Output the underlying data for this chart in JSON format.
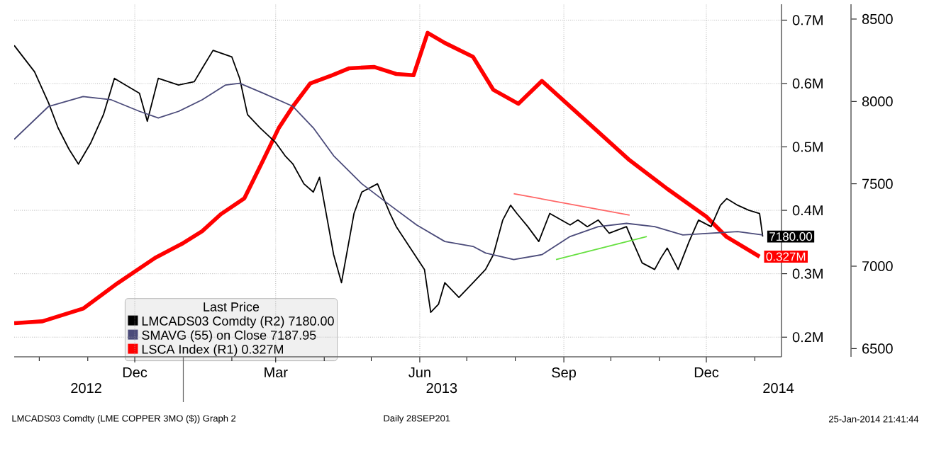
{
  "chart_data": {
    "type": "line",
    "xlim": [
      "2012-09-15",
      "2014-01-18"
    ],
    "xticks": [
      {
        "value": "2012-10-01",
        "label": null
      },
      {
        "value": "2012-11-01",
        "label": null
      },
      {
        "value": "2012-12-01",
        "label": "Dec"
      },
      {
        "value": "2013-01-01",
        "label": null
      },
      {
        "value": "2013-02-01",
        "label": null
      },
      {
        "value": "2013-03-01",
        "label": "Mar"
      },
      {
        "value": "2013-04-01",
        "label": null
      },
      {
        "value": "2013-05-01",
        "label": null
      },
      {
        "value": "2013-06-01",
        "label": "Jun"
      },
      {
        "value": "2013-07-01",
        "label": null
      },
      {
        "value": "2013-08-01",
        "label": null
      },
      {
        "value": "2013-09-01",
        "label": "Sep"
      },
      {
        "value": "2013-10-01",
        "label": null
      },
      {
        "value": "2013-11-01",
        "label": null
      },
      {
        "value": "2013-12-01",
        "label": "Dec"
      },
      {
        "value": "2014-01-01",
        "label": null
      }
    ],
    "x2lim": [
      "2012-09-15",
      "2014-01-18"
    ],
    "x2ticks": [
      {
        "value": "2012-10-31",
        "label": "2012"
      },
      {
        "value": "2013-01-01",
        "label": null
      },
      {
        "value": "2013-06-15",
        "label": "2013"
      },
      {
        "value": "2014-01-16",
        "label": "2014"
      }
    ],
    "ylim": [
      0.169,
      0.725
    ],
    "yticks": [
      {
        "value": 0.2,
        "label": "0.2M"
      },
      {
        "value": 0.3,
        "label": "0.3M"
      },
      {
        "value": 0.4,
        "label": "0.4M"
      },
      {
        "value": 0.5,
        "label": "0.5M"
      },
      {
        "value": 0.6,
        "label": "0.6M"
      },
      {
        "value": 0.7,
        "label": "0.7M"
      }
    ],
    "y2lim": [
      6450,
      8590
    ],
    "y2ticks": [
      6500,
      7000,
      7500,
      8000,
      8500
    ],
    "grid": true,
    "legend": "bottom left",
    "legend_title": "Last Price",
    "series": [
      {
        "name": "LMCADS03 Comdty  (R2)   7180.00",
        "color": "#000000",
        "axis": "y2",
        "x": [
          "2012-09-15",
          "2012-09-28",
          "2012-10-07",
          "2012-10-13",
          "2012-10-20",
          "2012-10-26",
          "2012-11-03",
          "2012-11-11",
          "2012-11-18",
          "2012-11-25",
          "2012-12-04",
          "2012-12-09",
          "2012-12-16",
          "2012-12-29",
          "2013-01-08",
          "2013-01-13",
          "2013-01-20",
          "2013-02-01",
          "2013-02-06",
          "2013-02-11",
          "2013-02-19",
          "2013-03-01",
          "2013-03-07",
          "2013-03-12",
          "2013-03-19",
          "2013-03-25",
          "2013-03-29",
          "2013-04-03",
          "2013-04-07",
          "2013-04-12",
          "2013-04-16",
          "2013-04-20",
          "2013-04-25",
          "2013-05-05",
          "2013-05-13",
          "2013-05-17",
          "2013-05-26",
          "2013-06-04",
          "2013-06-08",
          "2013-06-13",
          "2013-06-17",
          "2013-06-26",
          "2013-07-05",
          "2013-07-13",
          "2013-07-18",
          "2013-07-24",
          "2013-07-29",
          "2013-08-02",
          "2013-08-09",
          "2013-08-16",
          "2013-08-23",
          "2013-09-05",
          "2013-09-10",
          "2013-09-16",
          "2013-09-23",
          "2013-09-30",
          "2013-10-11",
          "2013-10-15",
          "2013-10-21",
          "2013-10-29",
          "2013-11-02",
          "2013-11-06",
          "2013-11-13",
          "2013-11-20",
          "2013-11-26",
          "2013-12-04",
          "2013-12-10",
          "2013-12-14",
          "2013-12-21",
          "2013-12-28",
          "2014-01-04",
          "2014-01-06"
        ],
        "values": [
          8340,
          8180,
          7990,
          7840,
          7710,
          7620,
          7750,
          7920,
          8140,
          8100,
          8050,
          7880,
          8140,
          8100,
          8120,
          8200,
          8310,
          8270,
          8140,
          7920,
          7840,
          7750,
          7670,
          7620,
          7500,
          7450,
          7540,
          7280,
          7070,
          6900,
          7110,
          7320,
          7450,
          7500,
          7320,
          7240,
          7110,
          6980,
          6720,
          6770,
          6900,
          6810,
          6900,
          6980,
          7070,
          7280,
          7370,
          7320,
          7240,
          7150,
          7320,
          7250,
          7280,
          7240,
          7280,
          7200,
          7240,
          7150,
          7020,
          6980,
          7050,
          7110,
          6980,
          7150,
          7280,
          7240,
          7370,
          7410,
          7370,
          7340,
          7320,
          7180
        ],
        "value_labels": [
          null,
          null,
          null,
          null,
          null,
          null,
          null,
          null,
          null,
          null,
          null,
          null,
          null,
          null,
          null,
          null,
          null,
          null,
          null,
          null,
          null,
          null,
          null,
          null,
          null,
          null,
          null,
          null,
          null,
          null,
          null,
          null,
          null,
          null,
          null,
          null,
          null,
          null,
          null,
          null,
          null,
          null,
          null,
          null,
          null,
          null,
          null,
          null,
          null,
          null,
          null,
          null,
          null,
          null,
          null,
          null,
          null,
          null,
          null,
          null,
          null,
          null,
          null,
          null,
          null,
          null,
          null,
          null,
          null,
          null,
          null,
          "7180.00"
        ]
      },
      {
        "name": "SMAVG (55) on Close   7187.95",
        "color": "#4b4b7a",
        "axis": "y2",
        "x": [
          "2012-09-15",
          "2012-10-07",
          "2012-10-29",
          "2012-11-16",
          "2012-12-04",
          "2012-12-16",
          "2012-12-29",
          "2013-01-13",
          "2013-01-28",
          "2013-02-06",
          "2013-02-21",
          "2013-03-12",
          "2013-03-25",
          "2013-04-07",
          "2013-04-25",
          "2013-05-13",
          "2013-05-30",
          "2013-06-17",
          "2013-07-05",
          "2013-07-13",
          "2013-07-31",
          "2013-08-18",
          "2013-09-05",
          "2013-09-23",
          "2013-10-11",
          "2013-10-29",
          "2013-11-16",
          "2013-12-04",
          "2013-12-21",
          "2014-01-06"
        ],
        "values": [
          7770,
          7970,
          8030,
          8010,
          7940,
          7900,
          7940,
          8010,
          8100,
          8110,
          8050,
          7970,
          7840,
          7670,
          7500,
          7370,
          7250,
          7150,
          7120,
          7080,
          7040,
          7070,
          7180,
          7240,
          7260,
          7240,
          7190,
          7200,
          7210,
          7190
        ]
      },
      {
        "name": "LSCA Index  (R1)   0.327M",
        "color": "#ff0000",
        "axis": "y",
        "x": [
          "2012-09-15",
          "2012-10-03",
          "2012-10-29",
          "2012-11-20",
          "2012-12-14",
          "2012-12-31",
          "2013-01-13",
          "2013-01-25",
          "2013-02-09",
          "2013-02-21",
          "2013-03-03",
          "2013-03-12",
          "2013-03-23",
          "2013-04-06",
          "2013-04-17",
          "2013-05-03",
          "2013-05-17",
          "2013-05-28",
          "2013-06-06",
          "2013-06-17",
          "2013-07-05",
          "2013-07-18",
          "2013-08-03",
          "2013-08-18",
          "2013-09-13",
          "2013-10-13",
          "2013-11-06",
          "2013-12-01",
          "2013-12-14",
          "2014-01-04"
        ],
        "values": [
          0.222,
          0.225,
          0.245,
          0.285,
          0.325,
          0.347,
          0.367,
          0.394,
          0.419,
          0.479,
          0.53,
          0.564,
          0.6,
          0.613,
          0.624,
          0.626,
          0.615,
          0.613,
          0.68,
          0.664,
          0.642,
          0.59,
          0.568,
          0.604,
          0.546,
          0.479,
          0.434,
          0.39,
          0.358,
          0.327
        ],
        "value_labels": [
          null,
          null,
          null,
          null,
          null,
          null,
          null,
          null,
          null,
          null,
          null,
          null,
          null,
          null,
          null,
          null,
          null,
          null,
          null,
          null,
          null,
          null,
          null,
          null,
          null,
          null,
          null,
          null,
          null,
          "0.327M"
        ]
      },
      {
        "color": "#ff6666",
        "axis": "y2",
        "x": [
          "2013-07-31",
          "2013-10-13"
        ],
        "values": [
          7440,
          7310
        ]
      },
      {
        "color": "#66e040",
        "axis": "y2",
        "x": [
          "2013-08-27",
          "2013-10-24"
        ],
        "values": [
          7040,
          7180
        ]
      }
    ],
    "annotations": [
      "LMCADS03 Comdty (LME COPPER   3MO ($)) Graph 2",
      "Daily 28SEP201",
      "25-Jan-2014 21:41:44"
    ]
  }
}
